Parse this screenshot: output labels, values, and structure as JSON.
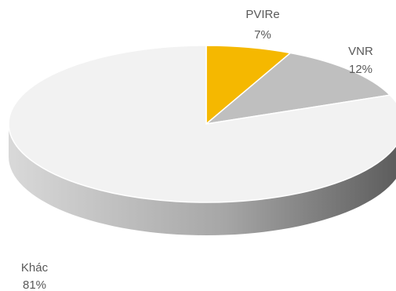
{
  "chart_data": {
    "type": "pie",
    "style": "3d",
    "slices": [
      {
        "label": "PVIRe",
        "value": 7,
        "value_text": "7%",
        "color": "#f5b800"
      },
      {
        "label": "VNR",
        "value": 12,
        "value_text": "12%",
        "color": "#bfbfbf"
      },
      {
        "label": "Khác",
        "value": 81,
        "value_text": "81%",
        "color": "#f2f2f2"
      }
    ],
    "start_angle": "12 o'clock",
    "direction": "clockwise",
    "side_shade_dark": "#5a5a5a",
    "side_shade_light": "#d9d9d9"
  }
}
